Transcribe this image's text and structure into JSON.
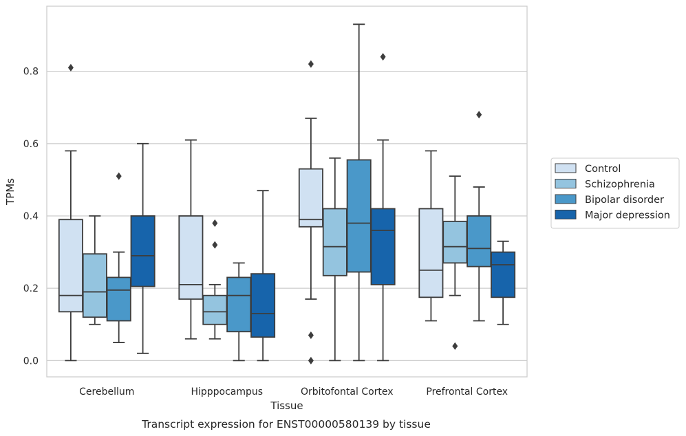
{
  "chart_data": {
    "type": "box",
    "caption": "Transcript expression for ENST00000580139 by tissue",
    "xlabel": "Tissue",
    "ylabel": "TPMs",
    "ylim": [
      -0.045,
      0.98
    ],
    "yticks": [
      0.0,
      0.2,
      0.4,
      0.6,
      0.8
    ],
    "ytick_labels": [
      "0.0",
      "0.2",
      "0.4",
      "0.6",
      "0.8"
    ],
    "grid": "horizontal",
    "legend_position": "right",
    "categories": [
      "Cerebellum",
      "Hipppocampus",
      "Orbitofontal Cortex",
      "Prefrontal Cortex"
    ],
    "series": [
      {
        "name": "Control",
        "color": "#d0e1f2",
        "boxes": [
          {
            "whislo": 0.0,
            "q1": 0.135,
            "med": 0.18,
            "q3": 0.39,
            "whishi": 0.58,
            "fliers": [
              0.81
            ]
          },
          {
            "whislo": 0.06,
            "q1": 0.17,
            "med": 0.21,
            "q3": 0.4,
            "whishi": 0.61,
            "fliers": []
          },
          {
            "whislo": 0.17,
            "q1": 0.37,
            "med": 0.39,
            "q3": 0.53,
            "whishi": 0.67,
            "fliers": [
              0.82,
              0.07,
              0.0
            ]
          },
          {
            "whislo": 0.11,
            "q1": 0.175,
            "med": 0.25,
            "q3": 0.42,
            "whishi": 0.58,
            "fliers": []
          }
        ]
      },
      {
        "name": "Schizophrenia",
        "color": "#94c4df",
        "boxes": [
          {
            "whislo": 0.1,
            "q1": 0.12,
            "med": 0.19,
            "q3": 0.295,
            "whishi": 0.4,
            "fliers": []
          },
          {
            "whislo": 0.06,
            "q1": 0.1,
            "med": 0.135,
            "q3": 0.18,
            "whishi": 0.21,
            "fliers": [
              0.38,
              0.32
            ]
          },
          {
            "whislo": 0.0,
            "q1": 0.235,
            "med": 0.315,
            "q3": 0.42,
            "whishi": 0.56,
            "fliers": []
          },
          {
            "whislo": 0.18,
            "q1": 0.27,
            "med": 0.315,
            "q3": 0.385,
            "whishi": 0.51,
            "fliers": [
              0.04
            ]
          }
        ]
      },
      {
        "name": "Bipolar disorder",
        "color": "#4a98c9",
        "boxes": [
          {
            "whislo": 0.05,
            "q1": 0.11,
            "med": 0.195,
            "q3": 0.23,
            "whishi": 0.3,
            "fliers": [
              0.51
            ]
          },
          {
            "whislo": 0.0,
            "q1": 0.08,
            "med": 0.18,
            "q3": 0.23,
            "whishi": 0.27,
            "fliers": []
          },
          {
            "whislo": 0.0,
            "q1": 0.245,
            "med": 0.38,
            "q3": 0.555,
            "whishi": 0.93,
            "fliers": []
          },
          {
            "whislo": 0.11,
            "q1": 0.26,
            "med": 0.31,
            "q3": 0.4,
            "whishi": 0.48,
            "fliers": [
              0.68
            ]
          }
        ]
      },
      {
        "name": "Major depression",
        "color": "#1764ab",
        "boxes": [
          {
            "whislo": 0.02,
            "q1": 0.205,
            "med": 0.29,
            "q3": 0.4,
            "whishi": 0.6,
            "fliers": []
          },
          {
            "whislo": 0.0,
            "q1": 0.065,
            "med": 0.13,
            "q3": 0.24,
            "whishi": 0.47,
            "fliers": []
          },
          {
            "whislo": 0.0,
            "q1": 0.21,
            "med": 0.36,
            "q3": 0.42,
            "whishi": 0.61,
            "fliers": [
              0.84
            ]
          },
          {
            "whislo": 0.1,
            "q1": 0.175,
            "med": 0.265,
            "q3": 0.3,
            "whishi": 0.33,
            "fliers": []
          }
        ]
      }
    ]
  }
}
